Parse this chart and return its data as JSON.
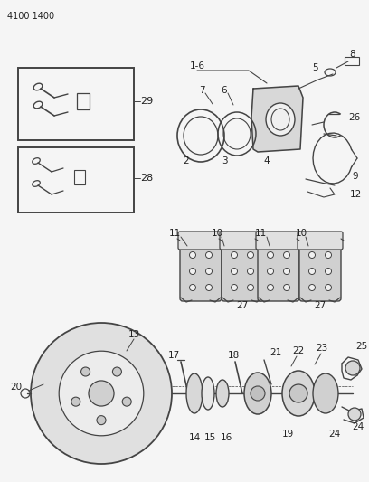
{
  "header": "4100 1400",
  "bg": "#f5f5f5",
  "lc": "#444444",
  "tc": "#222222",
  "fig_w": 4.08,
  "fig_h": 5.33,
  "dpi": 100
}
